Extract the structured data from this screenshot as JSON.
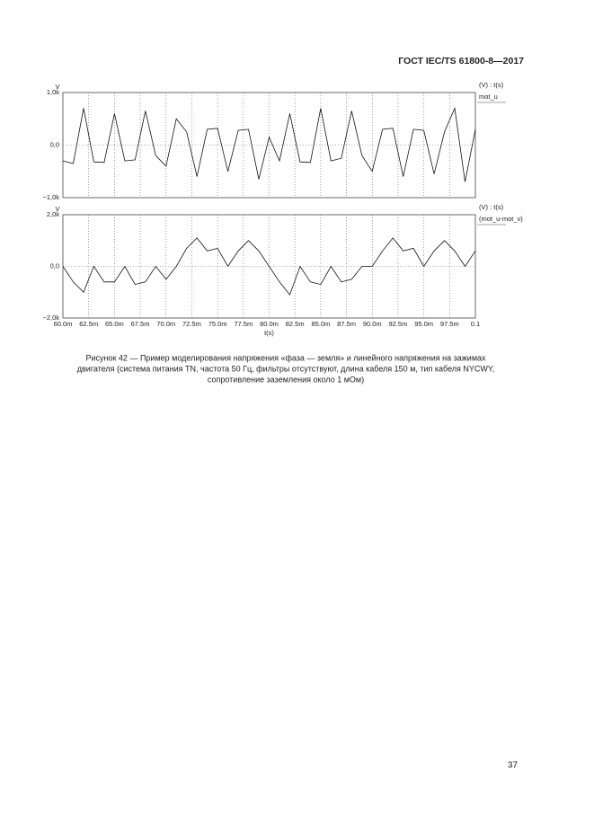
{
  "header": {
    "title": "ГОСТ IEC/TS 61800-8—2017"
  },
  "chart_data": [
    {
      "type": "line",
      "ylabel": "V",
      "legend_title": "(V) : t(s)",
      "xlim": [
        0.06,
        0.1
      ],
      "xticks": [
        0.06,
        0.0625,
        0.065,
        0.0675,
        0.07,
        0.0725,
        0.075,
        0.0775,
        0.08,
        0.0825,
        0.085,
        0.0875,
        0.09,
        0.0925,
        0.095,
        0.0975,
        0.1
      ],
      "ylim": [
        -1000,
        1000
      ],
      "yticks": [
        {
          "value": 1000,
          "label": "1,0k"
        },
        {
          "value": 0,
          "label": "0,0"
        },
        {
          "value": -1000,
          "label": "−1,0k"
        }
      ],
      "grid": true,
      "x": [
        0.06,
        0.061,
        0.062,
        0.063,
        0.064,
        0.065,
        0.066,
        0.067,
        0.068,
        0.069,
        0.07,
        0.071,
        0.072,
        0.073,
        0.074,
        0.075,
        0.076,
        0.077,
        0.078,
        0.079,
        0.08,
        0.081,
        0.082,
        0.083,
        0.084,
        0.085,
        0.086,
        0.087,
        0.088,
        0.089,
        0.09,
        0.091,
        0.092,
        0.093,
        0.094,
        0.095,
        0.096,
        0.097,
        0.098,
        0.099,
        0.1
      ],
      "series": [
        {
          "name": "mot_u",
          "color": "#111111",
          "values": [
            -300,
            -350,
            700,
            -320,
            -330,
            600,
            -300,
            -280,
            650,
            -200,
            -400,
            500,
            250,
            -600,
            300,
            320,
            -500,
            280,
            300,
            -650,
            150,
            -300,
            600,
            -320,
            -330,
            700,
            -300,
            -250,
            650,
            -200,
            -500,
            300,
            320,
            -600,
            300,
            280,
            -550,
            250,
            700,
            -700,
            300
          ]
        }
      ]
    },
    {
      "type": "line",
      "ylabel": "V",
      "xlabel": "t(s)",
      "legend_title": "(V) : t(s)",
      "xlim": [
        0.06,
        0.1
      ],
      "xticks": [
        {
          "value": 0.06,
          "label": "60.0m"
        },
        {
          "value": 0.0625,
          "label": "62.5m"
        },
        {
          "value": 0.065,
          "label": "65.0m"
        },
        {
          "value": 0.0675,
          "label": "67.5m"
        },
        {
          "value": 0.07,
          "label": "70.0m"
        },
        {
          "value": 0.0725,
          "label": "72.5m"
        },
        {
          "value": 0.075,
          "label": "75.0m"
        },
        {
          "value": 0.0775,
          "label": "77.5m"
        },
        {
          "value": 0.08,
          "label": "80.0m"
        },
        {
          "value": 0.0825,
          "label": "82.5m"
        },
        {
          "value": 0.085,
          "label": "85.0m"
        },
        {
          "value": 0.0875,
          "label": "87.5m"
        },
        {
          "value": 0.09,
          "label": "90.0m"
        },
        {
          "value": 0.0925,
          "label": "92.5m"
        },
        {
          "value": 0.095,
          "label": "95.0m"
        },
        {
          "value": 0.0975,
          "label": "97.5m"
        },
        0.1
      ],
      "ylim": [
        -2000,
        2000
      ],
      "yticks": [
        {
          "value": 2000,
          "label": "2,0k"
        },
        {
          "value": 0,
          "label": "0,0"
        },
        {
          "value": -2000,
          "label": "−2,0k"
        }
      ],
      "grid": true,
      "x": [
        0.06,
        0.061,
        0.062,
        0.063,
        0.064,
        0.065,
        0.066,
        0.067,
        0.068,
        0.069,
        0.07,
        0.071,
        0.072,
        0.073,
        0.074,
        0.075,
        0.076,
        0.077,
        0.078,
        0.079,
        0.08,
        0.081,
        0.082,
        0.083,
        0.084,
        0.085,
        0.086,
        0.087,
        0.088,
        0.089,
        0.09,
        0.091,
        0.092,
        0.093,
        0.094,
        0.095,
        0.096,
        0.097,
        0.098,
        0.099,
        0.1
      ],
      "series": [
        {
          "name": "(mot_u-mot_v)",
          "color": "#111111",
          "values": [
            0,
            -600,
            -1000,
            0,
            -600,
            -600,
            0,
            -700,
            -600,
            0,
            -500,
            0,
            700,
            1100,
            600,
            700,
            0,
            600,
            1000,
            600,
            0,
            -600,
            -1100,
            0,
            -600,
            -700,
            0,
            -600,
            -500,
            0,
            0,
            600,
            1100,
            600,
            700,
            0,
            600,
            1000,
            600,
            0,
            600
          ]
        }
      ]
    }
  ],
  "caption": [
    "Рисунок 42 — Пример моделирования напряжения «фаза — земля» и линейного напряжения на зажимах",
    "двигателя (система питания TN, частота 50 Гц, фильтры отсутствуют, длина кабеля 150 м, тип кабеля NYCWY,",
    "сопротивление заземления около 1 мОм)"
  ],
  "page_number": "37"
}
